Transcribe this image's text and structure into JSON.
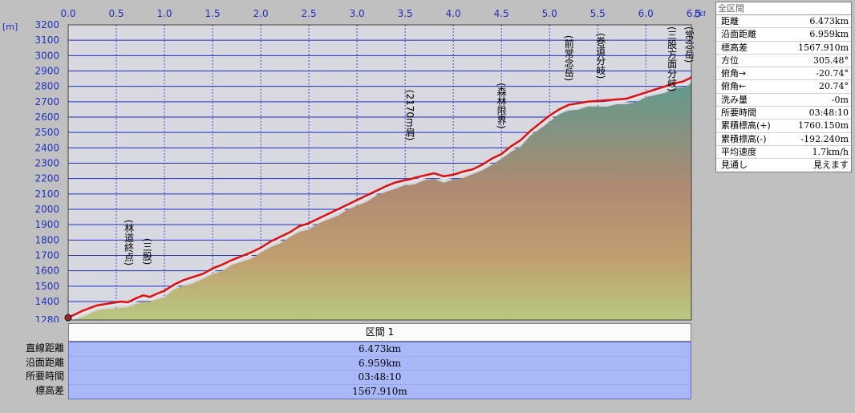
{
  "chart_data": {
    "type": "area",
    "x_unit": "[km]",
    "y_unit": "[m]",
    "xlim": [
      0,
      6.473
    ],
    "ylim": [
      1280,
      3200
    ],
    "x_ticks": [
      "0.0",
      "0.5",
      "1.0",
      "1.5",
      "2.0",
      "2.5",
      "3.0",
      "3.5",
      "4.0",
      "4.5",
      "5.0",
      "5.5",
      "6.0",
      "6.5"
    ],
    "y_ticks": [
      "3200",
      "3100",
      "3000",
      "2900",
      "2800",
      "2700",
      "2600",
      "2500",
      "2400",
      "2300",
      "2200",
      "2100",
      "2000",
      "1900",
      "1800",
      "1700",
      "1600",
      "1500",
      "1400",
      "1280"
    ],
    "grid": true,
    "series": [
      {
        "x": [
          0,
          0.05,
          0.15,
          0.3,
          0.45,
          0.55,
          0.62,
          0.7,
          0.78,
          0.85,
          0.92,
          1.0,
          1.1,
          1.2,
          1.3,
          1.4,
          1.5,
          1.6,
          1.7,
          1.8,
          1.9,
          2.0,
          2.1,
          2.2,
          2.3,
          2.4,
          2.5,
          2.6,
          2.7,
          2.8,
          2.9,
          3.0,
          3.1,
          3.2,
          3.3,
          3.4,
          3.5,
          3.55,
          3.6,
          3.7,
          3.8,
          3.9,
          4.0,
          4.05,
          4.1,
          4.2,
          4.3,
          4.4,
          4.5,
          4.6,
          4.7,
          4.8,
          4.9,
          5.0,
          5.1,
          5.2,
          5.3,
          5.4,
          5.5,
          5.6,
          5.7,
          5.8,
          5.9,
          6.0,
          6.1,
          6.2,
          6.3,
          6.38,
          6.45,
          6.473
        ],
        "y": [
          1295,
          1310,
          1340,
          1375,
          1390,
          1400,
          1395,
          1420,
          1440,
          1430,
          1450,
          1470,
          1510,
          1540,
          1560,
          1580,
          1615,
          1640,
          1670,
          1695,
          1720,
          1750,
          1790,
          1820,
          1850,
          1890,
          1910,
          1940,
          1970,
          2000,
          2030,
          2060,
          2090,
          2120,
          2150,
          2175,
          2190,
          2195,
          2205,
          2220,
          2235,
          2215,
          2225,
          2235,
          2245,
          2260,
          2290,
          2330,
          2360,
          2410,
          2450,
          2510,
          2560,
          2610,
          2650,
          2680,
          2690,
          2700,
          2705,
          2710,
          2715,
          2720,
          2740,
          2760,
          2780,
          2800,
          2820,
          2830,
          2850,
          2860
        ]
      }
    ],
    "annotations": [
      {
        "text": "(林道終点)",
        "x": 0.63,
        "y": 1500
      },
      {
        "text": "(三股)",
        "x": 0.82,
        "y": 1510
      },
      {
        "text": "(2170m肩)",
        "x": 3.55,
        "y": 2215
      },
      {
        "text": "(森林限界)",
        "x": 4.5,
        "y": 2390
      },
      {
        "text": "(前常念岳)",
        "x": 5.2,
        "y": 2700
      },
      {
        "text": "(巻道分岐)",
        "x": 5.53,
        "y": 2715
      },
      {
        "text": "(三股方面分岐)",
        "x": 6.27,
        "y": 2840
      },
      {
        "text": "(常念岳)",
        "x": 6.45,
        "y": 2870
      }
    ]
  },
  "stats_panel": {
    "title": "全区間",
    "rows": [
      {
        "label": "距離",
        "value": "6.473km"
      },
      {
        "label": "沿面距離",
        "value": "6.959km"
      },
      {
        "label": "標高差",
        "value": "1567.910m"
      },
      {
        "label": "方位",
        "value": "305.48°"
      },
      {
        "label": "俯角→",
        "value": "-20.74°"
      },
      {
        "label": "俯角←",
        "value": "20.74°"
      },
      {
        "label": "洗み量",
        "value": "-0m"
      },
      {
        "label": "所要時間",
        "value": "03:48:10"
      },
      {
        "label": "累積標高(+)",
        "value": "1760.150m"
      },
      {
        "label": "累積標高(-)",
        "value": "-192.240m"
      },
      {
        "label": "平均速度",
        "value": "1.7km/h"
      },
      {
        "label": "見通し",
        "value": "見えます"
      }
    ]
  },
  "section": {
    "header": "区間 1",
    "labels": [
      "直線距離",
      "沿面距離",
      "所要時間",
      "標高差"
    ],
    "values": [
      "6.473km",
      "6.959km",
      "03:48:10",
      "1567.910m"
    ]
  },
  "colors": {
    "plot_bg": "#d8d8e0",
    "grid_v": "#2030c0",
    "grid_h": "#2030c0",
    "line": "#e01010",
    "fill_top": "#6a9a90",
    "fill_mid": "#b48a70",
    "fill_bottom": "#b8c880",
    "label_text": "#2030c0"
  }
}
